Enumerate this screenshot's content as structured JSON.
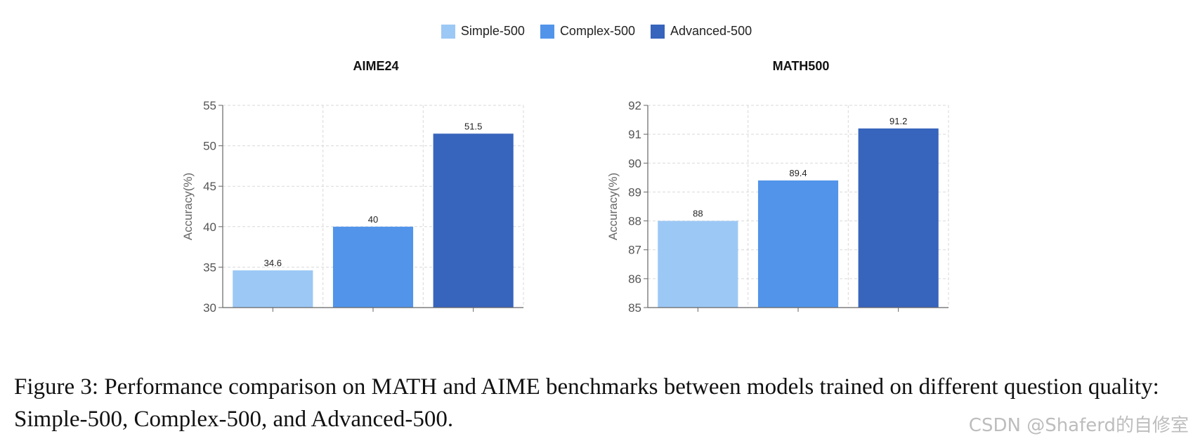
{
  "legend": [
    {
      "label": "Simple-500",
      "color": "#9cc8f5"
    },
    {
      "label": "Complex-500",
      "color": "#5294ea"
    },
    {
      "label": "Advanced-500",
      "color": "#3764bc"
    }
  ],
  "chart_data": [
    {
      "type": "bar",
      "title": "AIME24",
      "ylabel": "Accuracy(%)",
      "xlabel": "",
      "categories": [
        "Simple-500",
        "Complex-500",
        "Advanced-500"
      ],
      "values": [
        34.6,
        40,
        51.5
      ],
      "data_labels": [
        "34.6",
        "40",
        "51.5"
      ],
      "colors": [
        "#9cc8f5",
        "#5294ea",
        "#3764bc"
      ],
      "ylim": [
        30,
        55
      ],
      "yticks": [
        30,
        35,
        40,
        45,
        50,
        55
      ],
      "grid": true
    },
    {
      "type": "bar",
      "title": "MATH500",
      "ylabel": "Accuracy(%)",
      "xlabel": "",
      "categories": [
        "Simple-500",
        "Complex-500",
        "Advanced-500"
      ],
      "values": [
        88,
        89.4,
        91.2
      ],
      "data_labels": [
        "88",
        "89.4",
        "91.2"
      ],
      "colors": [
        "#9cc8f5",
        "#5294ea",
        "#3764bc"
      ],
      "ylim": [
        85,
        92
      ],
      "yticks": [
        85,
        86,
        87,
        88,
        89,
        90,
        91,
        92
      ],
      "grid": true
    }
  ],
  "caption": "Figure 3: Performance comparison on MATH and AIME benchmarks between models trained on different question quality: Simple-500, Complex-500, and Advanced-500.",
  "watermark": "CSDN @Shaferd的自修室"
}
